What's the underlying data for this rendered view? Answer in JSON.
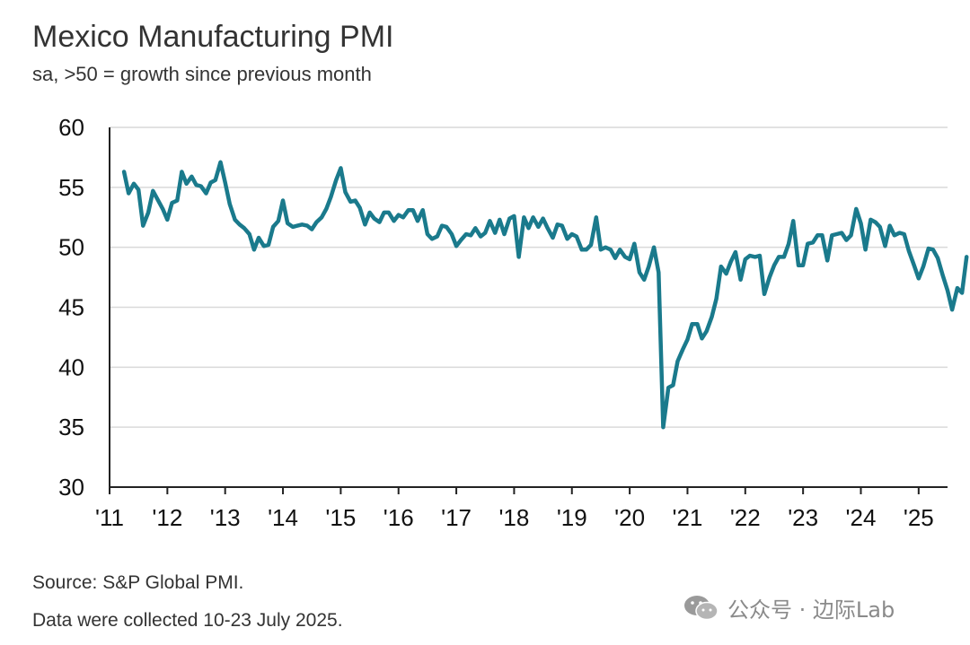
{
  "title": "Mexico Manufacturing PMI",
  "subtitle": "sa, >50 = growth since previous month",
  "source": "Source: S&P Global PMI.",
  "collected": "Data were collected 10-23 July 2025.",
  "watermark": {
    "text": "公众号 · 边际Lab",
    "icon": "wechat-icon"
  },
  "colors": {
    "line": "#1a7a8c",
    "grid": "#d9d9d9",
    "axis": "#222222"
  },
  "chart_data": {
    "type": "line",
    "title": "Mexico Manufacturing PMI",
    "subtitle": "sa, >50 = growth since previous month",
    "ylim": [
      30,
      60
    ],
    "yticks": [
      30,
      35,
      40,
      45,
      50,
      55,
      60
    ],
    "xlim": [
      2011.0,
      2025.5
    ],
    "xticks": [
      {
        "x": 2011,
        "label": "'11"
      },
      {
        "x": 2012,
        "label": "'12"
      },
      {
        "x": 2013,
        "label": "'13"
      },
      {
        "x": 2014,
        "label": "'14"
      },
      {
        "x": 2015,
        "label": "'15"
      },
      {
        "x": 2016,
        "label": "'16"
      },
      {
        "x": 2017,
        "label": "'17"
      },
      {
        "x": 2018,
        "label": "'18"
      },
      {
        "x": 2019,
        "label": "'19"
      },
      {
        "x": 2020,
        "label": "'20"
      },
      {
        "x": 2021,
        "label": "'21"
      },
      {
        "x": 2022,
        "label": "'22"
      },
      {
        "x": 2023,
        "label": "'23"
      },
      {
        "x": 2024,
        "label": "'24"
      },
      {
        "x": 2025,
        "label": "'25"
      }
    ],
    "grid": "horizontal",
    "series": [
      {
        "color": "#1a7a8c",
        "points": [
          [
            2011.25,
            56.3
          ],
          [
            2011.33,
            54.5
          ],
          [
            2011.42,
            55.3
          ],
          [
            2011.5,
            54.8
          ],
          [
            2011.58,
            51.8
          ],
          [
            2011.67,
            52.9
          ],
          [
            2011.75,
            54.7
          ],
          [
            2011.83,
            54.0
          ],
          [
            2011.92,
            53.2
          ],
          [
            2012.0,
            52.3
          ],
          [
            2012.08,
            53.7
          ],
          [
            2012.17,
            53.9
          ],
          [
            2012.25,
            56.3
          ],
          [
            2012.33,
            55.3
          ],
          [
            2012.42,
            55.9
          ],
          [
            2012.5,
            55.2
          ],
          [
            2012.58,
            55.1
          ],
          [
            2012.67,
            54.5
          ],
          [
            2012.75,
            55.4
          ],
          [
            2012.83,
            55.6
          ],
          [
            2012.92,
            57.1
          ],
          [
            2013.0,
            55.4
          ],
          [
            2013.08,
            53.6
          ],
          [
            2013.17,
            52.3
          ],
          [
            2013.25,
            51.9
          ],
          [
            2013.33,
            51.6
          ],
          [
            2013.42,
            51.1
          ],
          [
            2013.5,
            49.8
          ],
          [
            2013.58,
            50.8
          ],
          [
            2013.67,
            50.1
          ],
          [
            2013.75,
            50.2
          ],
          [
            2013.83,
            51.7
          ],
          [
            2013.92,
            52.2
          ],
          [
            2014.0,
            53.9
          ],
          [
            2014.08,
            52.0
          ],
          [
            2014.17,
            51.7
          ],
          [
            2014.25,
            51.8
          ],
          [
            2014.33,
            51.9
          ],
          [
            2014.42,
            51.8
          ],
          [
            2014.5,
            51.5
          ],
          [
            2014.58,
            52.1
          ],
          [
            2014.67,
            52.5
          ],
          [
            2014.75,
            53.2
          ],
          [
            2014.83,
            54.2
          ],
          [
            2014.92,
            55.6
          ],
          [
            2015.0,
            56.6
          ],
          [
            2015.08,
            54.6
          ],
          [
            2015.17,
            53.8
          ],
          [
            2015.25,
            53.9
          ],
          [
            2015.33,
            53.3
          ],
          [
            2015.42,
            51.9
          ],
          [
            2015.5,
            52.9
          ],
          [
            2015.58,
            52.4
          ],
          [
            2015.67,
            52.1
          ],
          [
            2015.75,
            52.9
          ],
          [
            2015.83,
            52.9
          ],
          [
            2015.92,
            52.2
          ],
          [
            2016.0,
            52.7
          ],
          [
            2016.08,
            52.5
          ],
          [
            2016.17,
            53.1
          ],
          [
            2016.25,
            53.1
          ],
          [
            2016.33,
            52.2
          ],
          [
            2016.42,
            53.1
          ],
          [
            2016.5,
            51.1
          ],
          [
            2016.58,
            50.7
          ],
          [
            2016.67,
            50.9
          ],
          [
            2016.75,
            51.8
          ],
          [
            2016.83,
            51.7
          ],
          [
            2016.92,
            51.1
          ],
          [
            2017.0,
            50.1
          ],
          [
            2017.08,
            50.6
          ],
          [
            2017.17,
            51.1
          ],
          [
            2017.25,
            51.0
          ],
          [
            2017.33,
            51.6
          ],
          [
            2017.42,
            50.9
          ],
          [
            2017.5,
            51.2
          ],
          [
            2017.58,
            52.2
          ],
          [
            2017.67,
            51.2
          ],
          [
            2017.75,
            52.3
          ],
          [
            2017.83,
            51.1
          ],
          [
            2017.92,
            52.4
          ],
          [
            2018.0,
            52.6
          ],
          [
            2018.08,
            49.2
          ],
          [
            2018.17,
            52.5
          ],
          [
            2018.25,
            51.6
          ],
          [
            2018.33,
            52.5
          ],
          [
            2018.42,
            51.7
          ],
          [
            2018.5,
            52.4
          ],
          [
            2018.58,
            51.6
          ],
          [
            2018.67,
            50.8
          ],
          [
            2018.75,
            51.9
          ],
          [
            2018.83,
            51.8
          ],
          [
            2018.92,
            50.7
          ],
          [
            2019.0,
            51.1
          ],
          [
            2019.08,
            50.9
          ],
          [
            2019.17,
            49.8
          ],
          [
            2019.25,
            49.8
          ],
          [
            2019.33,
            50.2
          ],
          [
            2019.42,
            52.5
          ],
          [
            2019.5,
            49.8
          ],
          [
            2019.58,
            50.0
          ],
          [
            2019.67,
            49.8
          ],
          [
            2019.75,
            49.1
          ],
          [
            2019.83,
            49.8
          ],
          [
            2019.92,
            49.2
          ],
          [
            2020.0,
            49.0
          ],
          [
            2020.08,
            50.3
          ],
          [
            2020.17,
            47.9
          ],
          [
            2020.25,
            47.3
          ],
          [
            2020.33,
            48.4
          ],
          [
            2020.42,
            50.0
          ],
          [
            2020.5,
            47.9
          ],
          [
            2020.58,
            35.0
          ],
          [
            2020.67,
            38.3
          ],
          [
            2020.75,
            38.5
          ],
          [
            2020.83,
            40.5
          ],
          [
            2020.92,
            41.5
          ],
          [
            2021.0,
            42.3
          ],
          [
            2021.08,
            43.6
          ],
          [
            2021.17,
            43.6
          ],
          [
            2021.25,
            42.4
          ],
          [
            2021.33,
            43.0
          ],
          [
            2021.42,
            44.2
          ],
          [
            2021.5,
            45.7
          ],
          [
            2021.58,
            48.4
          ],
          [
            2021.67,
            47.8
          ],
          [
            2021.75,
            48.8
          ],
          [
            2021.83,
            49.6
          ],
          [
            2021.92,
            47.3
          ],
          [
            2022.0,
            49.0
          ],
          [
            2022.08,
            49.3
          ],
          [
            2022.17,
            49.2
          ],
          [
            2022.25,
            49.3
          ],
          [
            2022.33,
            46.1
          ],
          [
            2022.42,
            47.5
          ],
          [
            2022.5,
            48.5
          ],
          [
            2022.58,
            49.2
          ],
          [
            2022.67,
            49.2
          ],
          [
            2022.75,
            50.3
          ],
          [
            2022.83,
            52.2
          ],
          [
            2022.92,
            48.5
          ],
          [
            2023.0,
            48.5
          ],
          [
            2023.08,
            50.3
          ],
          [
            2023.17,
            50.4
          ],
          [
            2023.25,
            51.0
          ],
          [
            2023.33,
            51.0
          ],
          [
            2023.42,
            48.9
          ],
          [
            2023.5,
            51.0
          ],
          [
            2023.58,
            51.1
          ],
          [
            2023.67,
            51.2
          ],
          [
            2023.75,
            50.6
          ],
          [
            2023.83,
            51.0
          ],
          [
            2023.92,
            53.2
          ],
          [
            2024.0,
            52.0
          ],
          [
            2024.08,
            49.8
          ],
          [
            2024.17,
            52.3
          ],
          [
            2024.25,
            52.1
          ],
          [
            2024.33,
            51.7
          ],
          [
            2024.42,
            50.1
          ],
          [
            2024.5,
            51.8
          ],
          [
            2024.58,
            51.0
          ],
          [
            2024.67,
            51.2
          ],
          [
            2024.75,
            51.1
          ],
          [
            2024.83,
            49.7
          ],
          [
            2024.92,
            48.5
          ],
          [
            2025.0,
            47.4
          ],
          [
            2025.08,
            48.4
          ],
          [
            2025.17,
            49.9
          ],
          [
            2025.25,
            49.8
          ],
          [
            2025.33,
            49.1
          ],
          [
            2025.42,
            47.6
          ],
          [
            2025.5,
            46.4
          ],
          [
            2025.58,
            44.8
          ],
          [
            2025.67,
            46.6
          ],
          [
            2025.75,
            46.2
          ],
          [
            2025.83,
            49.2
          ]
        ]
      }
    ]
  }
}
